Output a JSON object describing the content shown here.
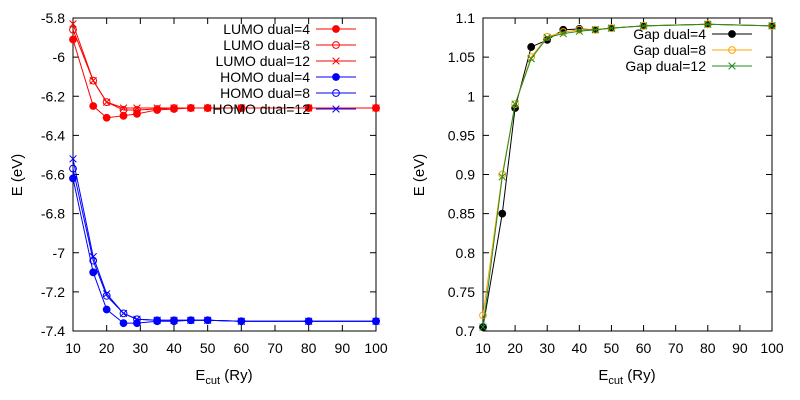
{
  "chart_data": [
    {
      "type": "line",
      "xlabel": "E",
      "xlabel_sub": "cut",
      "xlabel_unit": " (Ry)",
      "ylabel": "E (eV)",
      "xlim": [
        10,
        100
      ],
      "ylim": [
        -7.4,
        -5.8
      ],
      "xticks": [
        10,
        20,
        30,
        40,
        50,
        60,
        70,
        80,
        90,
        100
      ],
      "yticks": [
        -5.8,
        -6,
        -6.2,
        -6.4,
        -6.6,
        -6.8,
        -7,
        -7.2,
        -7.4
      ],
      "grid": false,
      "legend_position": "top-right",
      "series": [
        {
          "name": "LUMO dual=4",
          "color": "#ff0000",
          "marker": "filled-circle",
          "x": [
            10,
            16,
            20,
            25,
            29,
            35,
            40,
            45,
            50,
            60,
            80,
            100
          ],
          "y": [
            -5.91,
            -6.25,
            -6.31,
            -6.3,
            -6.29,
            -6.27,
            -6.265,
            -6.26,
            -6.26,
            -6.26,
            -6.26,
            -6.26
          ]
        },
        {
          "name": "LUMO dual=8",
          "color": "#ff0000",
          "marker": "open-circle",
          "x": [
            10,
            16,
            20,
            25,
            29,
            35,
            40,
            45,
            50,
            60,
            80,
            100
          ],
          "y": [
            -5.86,
            -6.12,
            -6.23,
            -6.27,
            -6.27,
            -6.265,
            -6.26,
            -6.26,
            -6.26,
            -6.26,
            -6.26,
            -6.26
          ]
        },
        {
          "name": "LUMO dual=12",
          "color": "#ff0000",
          "marker": "cross",
          "x": [
            10,
            16,
            20,
            25,
            29,
            35,
            40,
            45,
            50,
            60,
            80,
            100
          ],
          "y": [
            -5.83,
            -6.12,
            -6.23,
            -6.26,
            -6.26,
            -6.26,
            -6.26,
            -6.26,
            -6.26,
            -6.26,
            -6.26,
            -6.26
          ]
        },
        {
          "name": "HOMO dual=4",
          "color": "#0000ff",
          "marker": "filled-circle",
          "x": [
            10,
            16,
            20,
            25,
            29,
            35,
            40,
            45,
            50,
            60,
            80,
            100
          ],
          "y": [
            -6.62,
            -7.1,
            -7.29,
            -7.36,
            -7.36,
            -7.35,
            -7.35,
            -7.345,
            -7.345,
            -7.35,
            -7.35,
            -7.35
          ]
        },
        {
          "name": "HOMO dual=8",
          "color": "#0000ff",
          "marker": "open-circle",
          "x": [
            10,
            16,
            20,
            25,
            29,
            35,
            40,
            45,
            50,
            60,
            80,
            100
          ],
          "y": [
            -6.57,
            -7.04,
            -7.22,
            -7.31,
            -7.34,
            -7.345,
            -7.345,
            -7.345,
            -7.345,
            -7.35,
            -7.35,
            -7.35
          ]
        },
        {
          "name": "HOMO dual=12",
          "color": "#0000ff",
          "marker": "cross",
          "x": [
            10,
            16,
            20,
            25,
            29,
            35,
            40,
            45,
            50,
            60,
            80,
            100
          ],
          "y": [
            -6.52,
            -7.02,
            -7.21,
            -7.31,
            -7.34,
            -7.345,
            -7.345,
            -7.345,
            -7.345,
            -7.35,
            -7.35,
            -7.35
          ]
        }
      ]
    },
    {
      "type": "line",
      "xlabel": "E",
      "xlabel_sub": "cut",
      "xlabel_unit": " (Ry)",
      "ylabel": "E (eV)",
      "xlim": [
        10,
        100
      ],
      "ylim": [
        0.7,
        1.1
      ],
      "xticks": [
        10,
        20,
        30,
        40,
        50,
        60,
        70,
        80,
        90,
        100
      ],
      "yticks": [
        0.7,
        0.75,
        0.8,
        0.85,
        0.9,
        0.95,
        1,
        1.05,
        1.1
      ],
      "grid": false,
      "legend_position": "top-right",
      "series": [
        {
          "name": "Gap dual=4",
          "color": "#000000",
          "marker": "filled-circle",
          "x": [
            10,
            16,
            20,
            25,
            30,
            35,
            40,
            45,
            50,
            60,
            80,
            100
          ],
          "y": [
            0.705,
            0.85,
            0.985,
            1.063,
            1.072,
            1.085,
            1.086,
            1.085,
            1.087,
            1.09,
            1.092,
            1.09
          ]
        },
        {
          "name": "Gap dual=8",
          "color": "#ffa500",
          "marker": "open-circle",
          "x": [
            10,
            16,
            20,
            25,
            30,
            35,
            40,
            45,
            50,
            60,
            80,
            100
          ],
          "y": [
            0.72,
            0.9,
            0.99,
            1.05,
            1.076,
            1.082,
            1.085,
            1.085,
            1.087,
            1.09,
            1.092,
            1.09
          ]
        },
        {
          "name": "Gap dual=12",
          "color": "#228b22",
          "marker": "cross",
          "x": [
            10,
            16,
            20,
            25,
            30,
            35,
            40,
            45,
            50,
            60,
            80,
            100
          ],
          "y": [
            0.705,
            0.897,
            0.99,
            1.048,
            1.075,
            1.08,
            1.083,
            1.085,
            1.087,
            1.09,
            1.092,
            1.09
          ]
        }
      ]
    }
  ]
}
